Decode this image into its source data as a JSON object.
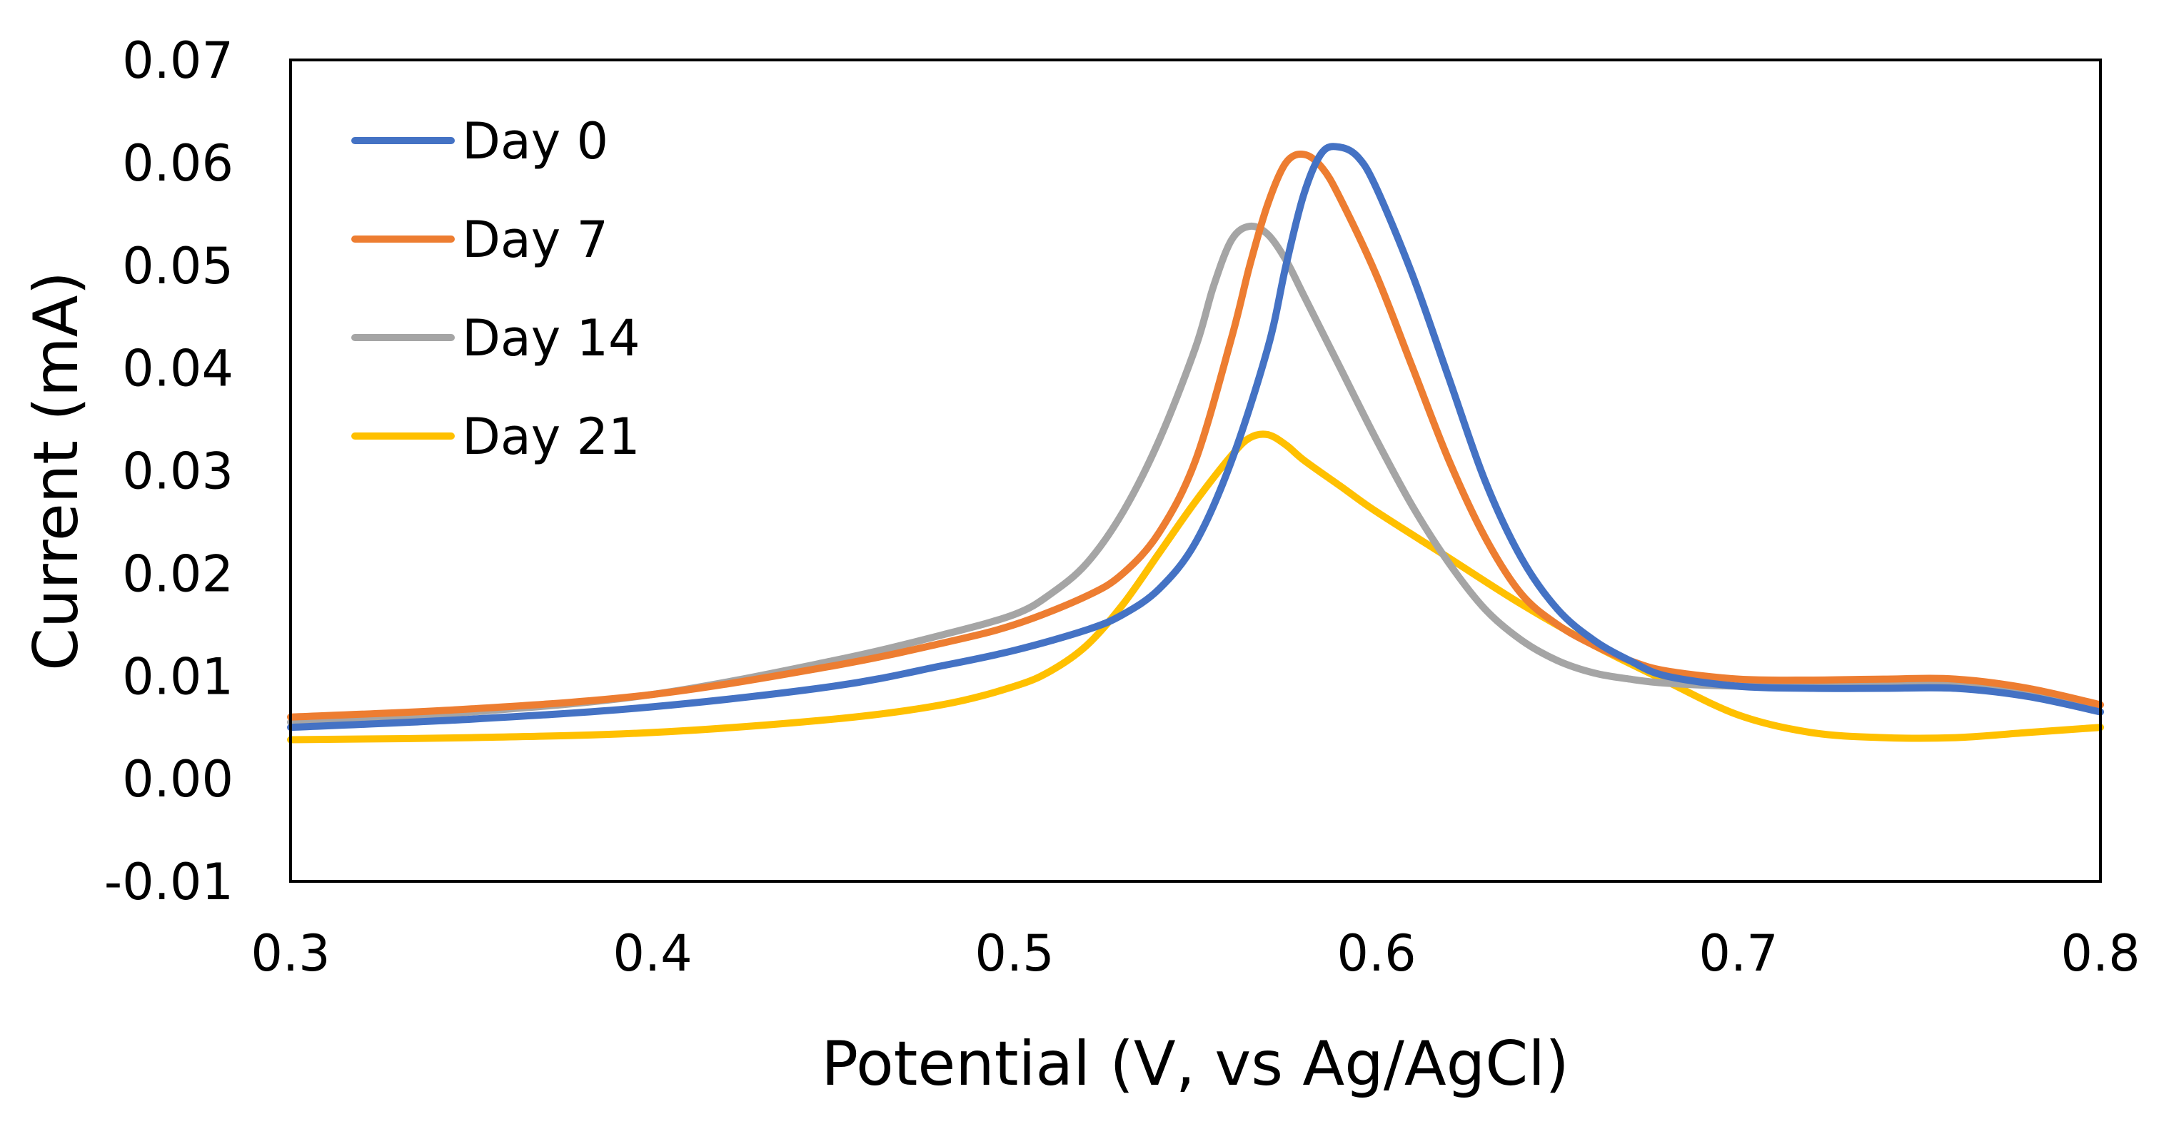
{
  "chart_data": {
    "type": "line",
    "title": "",
    "xlabel": "Potential (V, vs Ag/AgCl)",
    "ylabel": "Current (mA)",
    "xlim": [
      0.3,
      0.8
    ],
    "ylim": [
      -0.01,
      0.07
    ],
    "x_ticks": [
      0.3,
      0.4,
      0.5,
      0.6,
      0.7,
      0.8
    ],
    "x_tick_labels": [
      "0.3",
      "0.4",
      "0.5",
      "0.6",
      "0.7",
      "0.8"
    ],
    "y_ticks": [
      -0.01,
      0.0,
      0.01,
      0.02,
      0.03,
      0.04,
      0.05,
      0.06,
      0.07
    ],
    "y_tick_labels": [
      "-0.01",
      "0.00",
      "0.01",
      "0.02",
      "0.03",
      "0.04",
      "0.05",
      "0.06",
      "0.07"
    ],
    "grid": false,
    "legend_position": "top-left",
    "series": [
      {
        "name": "Day 0",
        "color": "#4472C4",
        "x": [
          0.3,
          0.35,
          0.4,
          0.45,
          0.48,
          0.5,
          0.52,
          0.53,
          0.54,
          0.55,
          0.56,
          0.57,
          0.575,
          0.58,
          0.585,
          0.59,
          0.595,
          0.6,
          0.61,
          0.62,
          0.63,
          0.64,
          0.65,
          0.66,
          0.67,
          0.68,
          0.7,
          0.72,
          0.74,
          0.76,
          0.78,
          0.8
        ],
        "y": [
          0.005,
          0.0058,
          0.007,
          0.009,
          0.011,
          0.0125,
          0.0145,
          0.016,
          0.0185,
          0.023,
          0.031,
          0.042,
          0.05,
          0.057,
          0.061,
          0.0615,
          0.0605,
          0.0575,
          0.049,
          0.039,
          0.029,
          0.0215,
          0.0165,
          0.0135,
          0.0115,
          0.01,
          0.009,
          0.0088,
          0.0088,
          0.0088,
          0.008,
          0.0065
        ]
      },
      {
        "name": "Day 7",
        "color": "#ED7D31",
        "x": [
          0.3,
          0.35,
          0.4,
          0.45,
          0.48,
          0.5,
          0.52,
          0.53,
          0.54,
          0.55,
          0.56,
          0.565,
          0.57,
          0.575,
          0.58,
          0.585,
          0.59,
          0.6,
          0.61,
          0.62,
          0.63,
          0.64,
          0.65,
          0.66,
          0.67,
          0.68,
          0.7,
          0.72,
          0.74,
          0.76,
          0.78,
          0.8
        ],
        "y": [
          0.006,
          0.0068,
          0.0082,
          0.011,
          0.0132,
          0.015,
          0.0178,
          0.02,
          0.024,
          0.031,
          0.043,
          0.05,
          0.056,
          0.06,
          0.0608,
          0.0595,
          0.0565,
          0.049,
          0.04,
          0.031,
          0.0235,
          0.018,
          0.015,
          0.013,
          0.0115,
          0.0105,
          0.0097,
          0.0096,
          0.0097,
          0.0097,
          0.0088,
          0.0072
        ]
      },
      {
        "name": "Day 14",
        "color": "#A5A5A5",
        "x": [
          0.3,
          0.35,
          0.4,
          0.45,
          0.48,
          0.5,
          0.51,
          0.52,
          0.53,
          0.54,
          0.55,
          0.555,
          0.56,
          0.565,
          0.57,
          0.575,
          0.58,
          0.59,
          0.6,
          0.61,
          0.62,
          0.63,
          0.64,
          0.65,
          0.66,
          0.67,
          0.68,
          0.7,
          0.72,
          0.74,
          0.76,
          0.78,
          0.8
        ],
        "y": [
          0.0055,
          0.0065,
          0.0082,
          0.0115,
          0.014,
          0.016,
          0.018,
          0.021,
          0.026,
          0.033,
          0.042,
          0.048,
          0.0525,
          0.0538,
          0.053,
          0.0505,
          0.047,
          0.04,
          0.033,
          0.0265,
          0.021,
          0.0165,
          0.0135,
          0.0115,
          0.0103,
          0.0097,
          0.0093,
          0.009,
          0.009,
          0.0092,
          0.0092,
          0.0082,
          0.0065
        ]
      },
      {
        "name": "Day 21",
        "color": "#FFC000",
        "x": [
          0.3,
          0.35,
          0.4,
          0.45,
          0.48,
          0.5,
          0.51,
          0.52,
          0.53,
          0.54,
          0.55,
          0.56,
          0.565,
          0.57,
          0.575,
          0.58,
          0.59,
          0.6,
          0.62,
          0.64,
          0.66,
          0.68,
          0.7,
          0.72,
          0.74,
          0.76,
          0.78,
          0.8
        ],
        "y": [
          0.0038,
          0.004,
          0.0045,
          0.0058,
          0.0072,
          0.009,
          0.0105,
          0.013,
          0.017,
          0.022,
          0.027,
          0.0315,
          0.0332,
          0.0335,
          0.0325,
          0.031,
          0.0285,
          0.026,
          0.0215,
          0.017,
          0.013,
          0.0095,
          0.0062,
          0.0045,
          0.004,
          0.004,
          0.0045,
          0.005
        ]
      }
    ]
  }
}
